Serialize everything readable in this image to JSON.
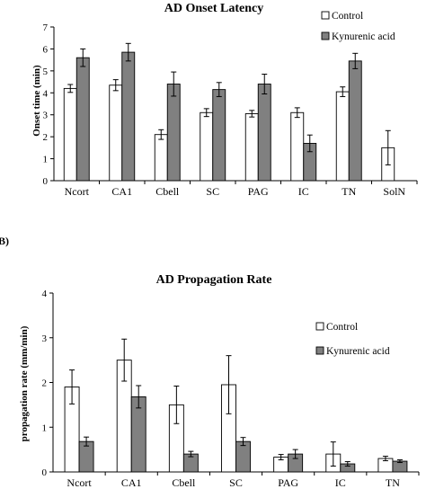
{
  "panel_b_label": "B)",
  "colors": {
    "control": "#ffffff",
    "kynurenic": "#808080",
    "axis": "#000000"
  },
  "chart_data": [
    {
      "type": "bar",
      "title": "AD Onset Latency",
      "xlabel": "",
      "ylabel": "Onset time (min)",
      "ylim": [
        0,
        7
      ],
      "yticks": [
        "0",
        "1",
        "2",
        "3",
        "4",
        "5",
        "6",
        "7"
      ],
      "categories": [
        "Ncort",
        "CA1",
        "Cbell",
        "SC",
        "PAG",
        "IC",
        "TN",
        "SolN"
      ],
      "series": [
        {
          "name": "Control",
          "values": [
            4.2,
            4.35,
            2.1,
            3.1,
            3.05,
            3.1,
            4.05,
            1.5
          ],
          "errors": [
            0.18,
            0.25,
            0.22,
            0.18,
            0.15,
            0.22,
            0.22,
            0.78
          ]
        },
        {
          "name": "Kynurenic acid",
          "values": [
            5.6,
            5.85,
            4.4,
            4.15,
            4.4,
            1.7,
            5.45,
            null
          ],
          "errors": [
            0.4,
            0.4,
            0.55,
            0.32,
            0.45,
            0.38,
            0.35,
            null
          ]
        }
      ],
      "legend": "top-right",
      "grid": false
    },
    {
      "type": "bar",
      "title": "AD Propagation Rate",
      "xlabel": "",
      "ylabel": "propagation rate (mm/min)",
      "ylim": [
        0,
        4
      ],
      "yticks": [
        "0",
        "1",
        "2",
        "3",
        "4"
      ],
      "categories": [
        "Ncort",
        "CA1",
        "Cbell",
        "SC",
        "PAG",
        "IC",
        "TN"
      ],
      "series": [
        {
          "name": "Control",
          "values": [
            1.9,
            2.5,
            1.5,
            1.95,
            0.33,
            0.4,
            0.3
          ],
          "errors": [
            0.38,
            0.47,
            0.42,
            0.65,
            0.06,
            0.27,
            0.05
          ]
        },
        {
          "name": "Kynurenic acid",
          "values": [
            0.68,
            1.68,
            0.4,
            0.68,
            0.4,
            0.18,
            0.24
          ],
          "errors": [
            0.1,
            0.25,
            0.06,
            0.09,
            0.1,
            0.05,
            0.03
          ]
        }
      ],
      "legend": "right",
      "grid": false
    }
  ]
}
